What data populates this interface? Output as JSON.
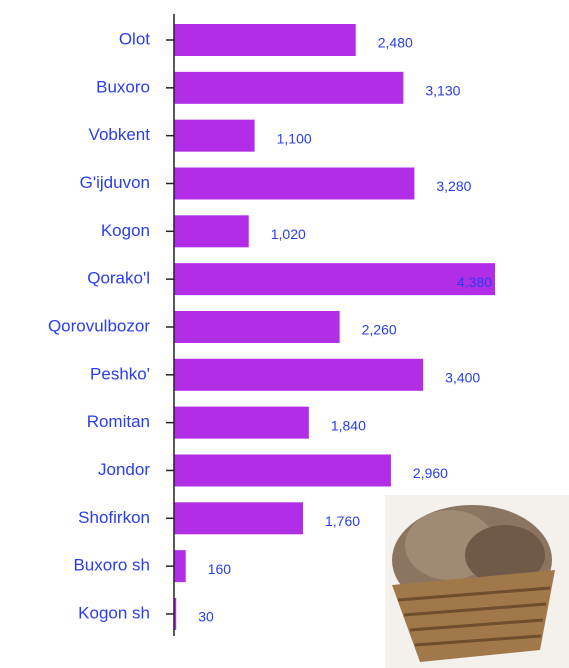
{
  "chart_data": {
    "type": "bar",
    "orientation": "horizontal",
    "categories": [
      "Olot",
      "Buxoro",
      "Vobkent",
      "G'ijduvon",
      "Kogon",
      "Qorako'l",
      "Qorovulbozor",
      "Peshko'",
      "Romitan",
      "Jondor",
      "Shofirkon",
      "Buxoro sh",
      "Kogon sh"
    ],
    "values": [
      2480,
      3130,
      1100,
      3280,
      1020,
      4380,
      2260,
      3400,
      1840,
      2960,
      1760,
      160,
      30
    ],
    "value_labels": [
      "2,480",
      "3,130",
      "1,100",
      "3,280",
      "1,020",
      "4,380",
      "2,260",
      "3,400",
      "1,840",
      "2,960",
      "1,760",
      "160",
      "30"
    ],
    "color": "#b22ee6"
  }
}
